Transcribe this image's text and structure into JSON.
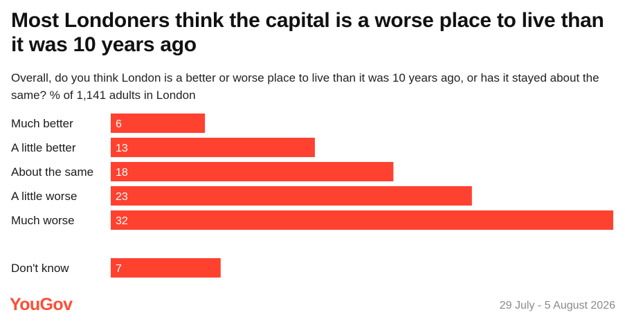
{
  "title": "Most Londoners think the capital is a worse place to live than it was 10 years ago",
  "subtitle": "Overall, do you think London is a better or worse place to live than it was 10 years ago, or has it stayed about the same? % of 1,141 adults in London",
  "brand": "YouGov",
  "date_range": "29 July - 5 August 2026",
  "colors": {
    "bar": "#ff4230",
    "brand": "#ff4d36"
  },
  "chart_data": {
    "type": "bar",
    "orientation": "horizontal",
    "categories": [
      "Much better",
      "A little better",
      "About the same",
      "A little worse",
      "Much worse",
      "Don't know"
    ],
    "values": [
      6,
      13,
      18,
      23,
      32,
      7
    ],
    "data_labels": [
      "6",
      "13",
      "18",
      "23",
      "32",
      "7"
    ],
    "xlim": [
      0,
      32
    ],
    "grid": false,
    "legend": "none"
  }
}
